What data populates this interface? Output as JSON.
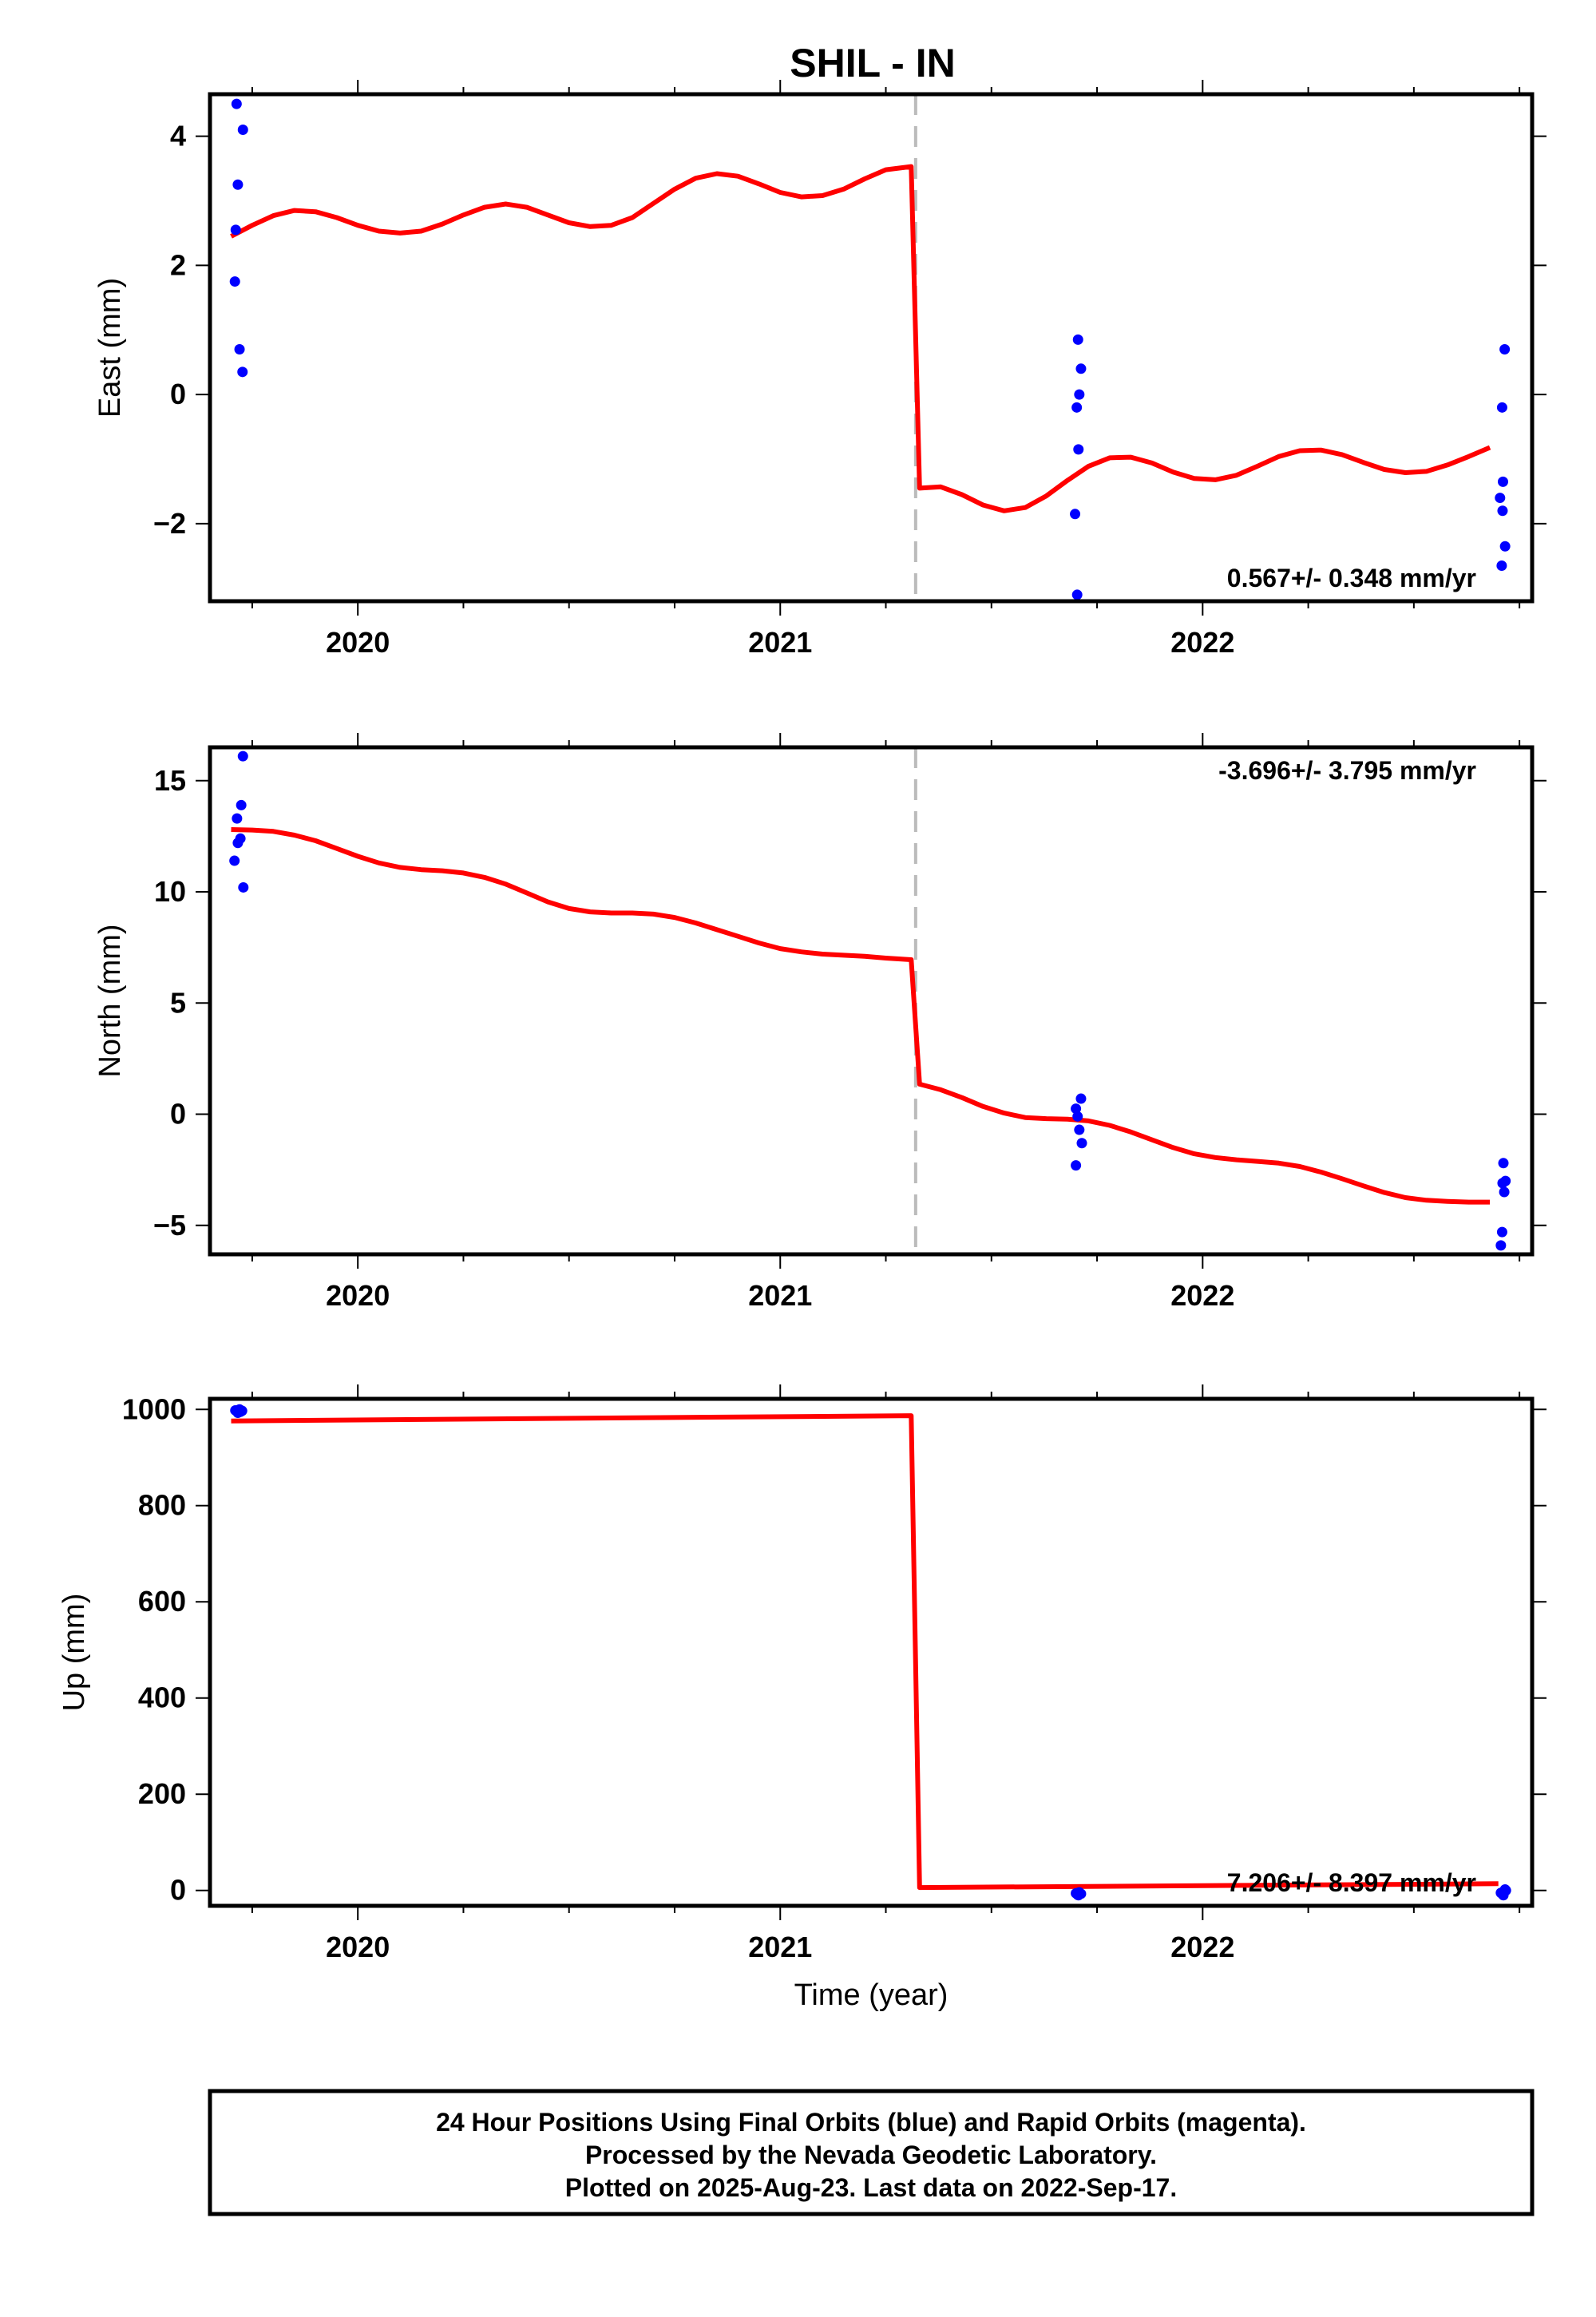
{
  "title": "SHIL - IN",
  "colors": {
    "model": "#ff0000",
    "observations": "#0000ff",
    "event_line": "#bbbbbb",
    "frame": "#000000"
  },
  "footer": {
    "line1": "24 Hour Positions Using Final Orbits (blue) and Rapid Orbits (magenta).",
    "line2": "Processed by the Nevada Geodetic Laboratory.",
    "line3": "Plotted on 2025-Aug-23. Last data on 2022-Sep-17."
  },
  "chart_data": [
    {
      "type": "scatter",
      "component": "east",
      "ylabel": "East (mm)",
      "xlabel": "",
      "xlim": [
        2019.65,
        2022.78
      ],
      "ylim": [
        -3.2,
        4.65
      ],
      "xticks": [
        2020,
        2021,
        2022
      ],
      "xtick_labels": [
        "2020",
        "2021",
        "2022"
      ],
      "yticks": [
        -2,
        0,
        2,
        4
      ],
      "ytick_labels": [
        "−2",
        "0",
        "2",
        "4"
      ],
      "rate_text": "0.567+/- 0.348 mm/yr",
      "rate_position": "bottom-right",
      "event_line_x": 2021.33,
      "observations": [
        {
          "x": 2019.713,
          "y": 4.5
        },
        {
          "x": 2019.728,
          "y": 4.1
        },
        {
          "x": 2019.716,
          "y": 3.25
        },
        {
          "x": 2019.711,
          "y": 2.55
        },
        {
          "x": 2019.709,
          "y": 1.75
        },
        {
          "x": 2019.72,
          "y": 0.7
        },
        {
          "x": 2019.727,
          "y": 0.35
        },
        {
          "x": 2021.705,
          "y": 0.85
        },
        {
          "x": 2021.712,
          "y": 0.4
        },
        {
          "x": 2021.708,
          "y": 0.0
        },
        {
          "x": 2021.702,
          "y": -0.2
        },
        {
          "x": 2021.706,
          "y": -0.85
        },
        {
          "x": 2021.698,
          "y": -1.85
        },
        {
          "x": 2021.703,
          "y": -3.1
        },
        {
          "x": 2022.715,
          "y": 0.7
        },
        {
          "x": 2022.709,
          "y": -0.2
        },
        {
          "x": 2022.711,
          "y": -1.35
        },
        {
          "x": 2022.704,
          "y": -1.6
        },
        {
          "x": 2022.71,
          "y": -1.8
        },
        {
          "x": 2022.716,
          "y": -2.35
        },
        {
          "x": 2022.708,
          "y": -2.65
        }
      ],
      "model": [
        [
          2019.7,
          2.45
        ],
        [
          2019.75,
          2.62
        ],
        [
          2019.8,
          2.77
        ],
        [
          2019.85,
          2.85
        ],
        [
          2019.9,
          2.83
        ],
        [
          2019.95,
          2.74
        ],
        [
          2020.0,
          2.62
        ],
        [
          2020.05,
          2.53
        ],
        [
          2020.1,
          2.5
        ],
        [
          2020.15,
          2.53
        ],
        [
          2020.2,
          2.64
        ],
        [
          2020.25,
          2.78
        ],
        [
          2020.3,
          2.9
        ],
        [
          2020.35,
          2.95
        ],
        [
          2020.4,
          2.9
        ],
        [
          2020.45,
          2.78
        ],
        [
          2020.5,
          2.66
        ],
        [
          2020.55,
          2.6
        ],
        [
          2020.6,
          2.62
        ],
        [
          2020.65,
          2.74
        ],
        [
          2020.7,
          2.96
        ],
        [
          2020.75,
          3.18
        ],
        [
          2020.8,
          3.35
        ],
        [
          2020.85,
          3.42
        ],
        [
          2020.9,
          3.38
        ],
        [
          2020.95,
          3.26
        ],
        [
          2021.0,
          3.13
        ],
        [
          2021.05,
          3.06
        ],
        [
          2021.1,
          3.08
        ],
        [
          2021.15,
          3.18
        ],
        [
          2021.2,
          3.34
        ],
        [
          2021.25,
          3.48
        ],
        [
          2021.31,
          3.53
        ],
        [
          2021.33,
          -1.45
        ],
        [
          2021.38,
          -1.43
        ],
        [
          2021.43,
          -1.55
        ],
        [
          2021.48,
          -1.71
        ],
        [
          2021.53,
          -1.8
        ],
        [
          2021.58,
          -1.75
        ],
        [
          2021.63,
          -1.57
        ],
        [
          2021.68,
          -1.33
        ],
        [
          2021.73,
          -1.11
        ],
        [
          2021.78,
          -0.98
        ],
        [
          2021.83,
          -0.97
        ],
        [
          2021.88,
          -1.06
        ],
        [
          2021.93,
          -1.2
        ],
        [
          2021.98,
          -1.3
        ],
        [
          2022.03,
          -1.32
        ],
        [
          2022.08,
          -1.25
        ],
        [
          2022.13,
          -1.11
        ],
        [
          2022.18,
          -0.96
        ],
        [
          2022.23,
          -0.87
        ],
        [
          2022.28,
          -0.86
        ],
        [
          2022.33,
          -0.93
        ],
        [
          2022.38,
          -1.05
        ],
        [
          2022.43,
          -1.16
        ],
        [
          2022.48,
          -1.21
        ],
        [
          2022.53,
          -1.19
        ],
        [
          2022.58,
          -1.09
        ],
        [
          2022.63,
          -0.96
        ],
        [
          2022.68,
          -0.82
        ]
      ]
    },
    {
      "type": "scatter",
      "component": "north",
      "ylabel": "North (mm)",
      "xlabel": "",
      "xlim": [
        2019.65,
        2022.78
      ],
      "ylim": [
        -6.3,
        16.5
      ],
      "xticks": [
        2020,
        2021,
        2022
      ],
      "xtick_labels": [
        "2020",
        "2021",
        "2022"
      ],
      "yticks": [
        -5,
        0,
        5,
        10,
        15
      ],
      "ytick_labels": [
        "−5",
        "0",
        "5",
        "10",
        "15"
      ],
      "rate_text": "-3.696+/- 3.795 mm/yr",
      "rate_position": "top-right",
      "event_line_x": 2021.33,
      "observations": [
        {
          "x": 2019.728,
          "y": 16.1
        },
        {
          "x": 2019.724,
          "y": 13.9
        },
        {
          "x": 2019.714,
          "y": 13.3
        },
        {
          "x": 2019.722,
          "y": 12.4
        },
        {
          "x": 2019.716,
          "y": 12.2
        },
        {
          "x": 2019.708,
          "y": 11.4
        },
        {
          "x": 2019.729,
          "y": 10.2
        },
        {
          "x": 2021.712,
          "y": 0.7
        },
        {
          "x": 2021.7,
          "y": 0.25
        },
        {
          "x": 2021.704,
          "y": -0.1
        },
        {
          "x": 2021.708,
          "y": -0.7
        },
        {
          "x": 2021.714,
          "y": -1.3
        },
        {
          "x": 2021.7,
          "y": -2.3
        },
        {
          "x": 2022.712,
          "y": -2.2
        },
        {
          "x": 2022.717,
          "y": -3.0
        },
        {
          "x": 2022.71,
          "y": -3.1
        },
        {
          "x": 2022.714,
          "y": -3.5
        },
        {
          "x": 2022.709,
          "y": -5.3
        },
        {
          "x": 2022.706,
          "y": -5.9
        }
      ],
      "model": [
        [
          2019.7,
          12.8
        ],
        [
          2019.75,
          12.78
        ],
        [
          2019.8,
          12.72
        ],
        [
          2019.85,
          12.55
        ],
        [
          2019.9,
          12.3
        ],
        [
          2019.95,
          11.95
        ],
        [
          2020.0,
          11.6
        ],
        [
          2020.05,
          11.3
        ],
        [
          2020.1,
          11.1
        ],
        [
          2020.15,
          11.0
        ],
        [
          2020.2,
          10.95
        ],
        [
          2020.25,
          10.85
        ],
        [
          2020.3,
          10.65
        ],
        [
          2020.35,
          10.35
        ],
        [
          2020.4,
          9.95
        ],
        [
          2020.45,
          9.55
        ],
        [
          2020.5,
          9.25
        ],
        [
          2020.55,
          9.1
        ],
        [
          2020.6,
          9.05
        ],
        [
          2020.65,
          9.05
        ],
        [
          2020.7,
          9.0
        ],
        [
          2020.75,
          8.85
        ],
        [
          2020.8,
          8.6
        ],
        [
          2020.85,
          8.3
        ],
        [
          2020.9,
          8.0
        ],
        [
          2020.95,
          7.7
        ],
        [
          2021.0,
          7.45
        ],
        [
          2021.05,
          7.3
        ],
        [
          2021.1,
          7.2
        ],
        [
          2021.15,
          7.15
        ],
        [
          2021.2,
          7.1
        ],
        [
          2021.25,
          7.02
        ],
        [
          2021.31,
          6.95
        ],
        [
          2021.33,
          1.35
        ],
        [
          2021.38,
          1.1
        ],
        [
          2021.43,
          0.75
        ],
        [
          2021.48,
          0.35
        ],
        [
          2021.53,
          0.05
        ],
        [
          2021.58,
          -0.15
        ],
        [
          2021.63,
          -0.2
        ],
        [
          2021.68,
          -0.22
        ],
        [
          2021.73,
          -0.3
        ],
        [
          2021.78,
          -0.5
        ],
        [
          2021.83,
          -0.8
        ],
        [
          2021.88,
          -1.15
        ],
        [
          2021.93,
          -1.5
        ],
        [
          2021.98,
          -1.78
        ],
        [
          2022.03,
          -1.95
        ],
        [
          2022.08,
          -2.05
        ],
        [
          2022.13,
          -2.12
        ],
        [
          2022.18,
          -2.2
        ],
        [
          2022.23,
          -2.35
        ],
        [
          2022.28,
          -2.6
        ],
        [
          2022.33,
          -2.9
        ],
        [
          2022.38,
          -3.22
        ],
        [
          2022.43,
          -3.52
        ],
        [
          2022.48,
          -3.75
        ],
        [
          2022.53,
          -3.87
        ],
        [
          2022.58,
          -3.92
        ],
        [
          2022.63,
          -3.95
        ],
        [
          2022.68,
          -3.95
        ]
      ]
    },
    {
      "type": "scatter",
      "component": "up",
      "ylabel": "Up (mm)",
      "xlabel": "Time (year)",
      "xlim": [
        2019.65,
        2022.78
      ],
      "ylim": [
        -32,
        1022
      ],
      "xticks": [
        2020,
        2021,
        2022
      ],
      "xtick_labels": [
        "2020",
        "2021",
        "2022"
      ],
      "yticks": [
        0,
        200,
        400,
        600,
        800,
        1000
      ],
      "ytick_labels": [
        "0",
        "200",
        "400",
        "600",
        "800",
        "1000"
      ],
      "rate_text": "7.206+/- 8.397 mm/yr",
      "rate_position": "bottom-right",
      "event_line_x": 2021.33,
      "observations": [
        {
          "x": 2019.71,
          "y": 998
        },
        {
          "x": 2019.714,
          "y": 996
        },
        {
          "x": 2019.718,
          "y": 999
        },
        {
          "x": 2019.722,
          "y": 995
        },
        {
          "x": 2019.726,
          "y": 997
        },
        {
          "x": 2019.716,
          "y": 993
        },
        {
          "x": 2019.72,
          "y": 1000
        },
        {
          "x": 2021.7,
          "y": -6
        },
        {
          "x": 2021.704,
          "y": -9
        },
        {
          "x": 2021.708,
          "y": -4
        },
        {
          "x": 2021.712,
          "y": -7
        },
        {
          "x": 2021.706,
          "y": -10
        },
        {
          "x": 2022.706,
          "y": -5
        },
        {
          "x": 2022.71,
          "y": -8
        },
        {
          "x": 2022.714,
          "y": -3
        },
        {
          "x": 2022.718,
          "y": 0
        },
        {
          "x": 2022.712,
          "y": -10
        },
        {
          "x": 2022.716,
          "y": 2
        }
      ],
      "model": [
        [
          2019.7,
          976
        ],
        [
          2021.31,
          987
        ],
        [
          2021.33,
          6
        ],
        [
          2022.7,
          14
        ]
      ]
    }
  ]
}
